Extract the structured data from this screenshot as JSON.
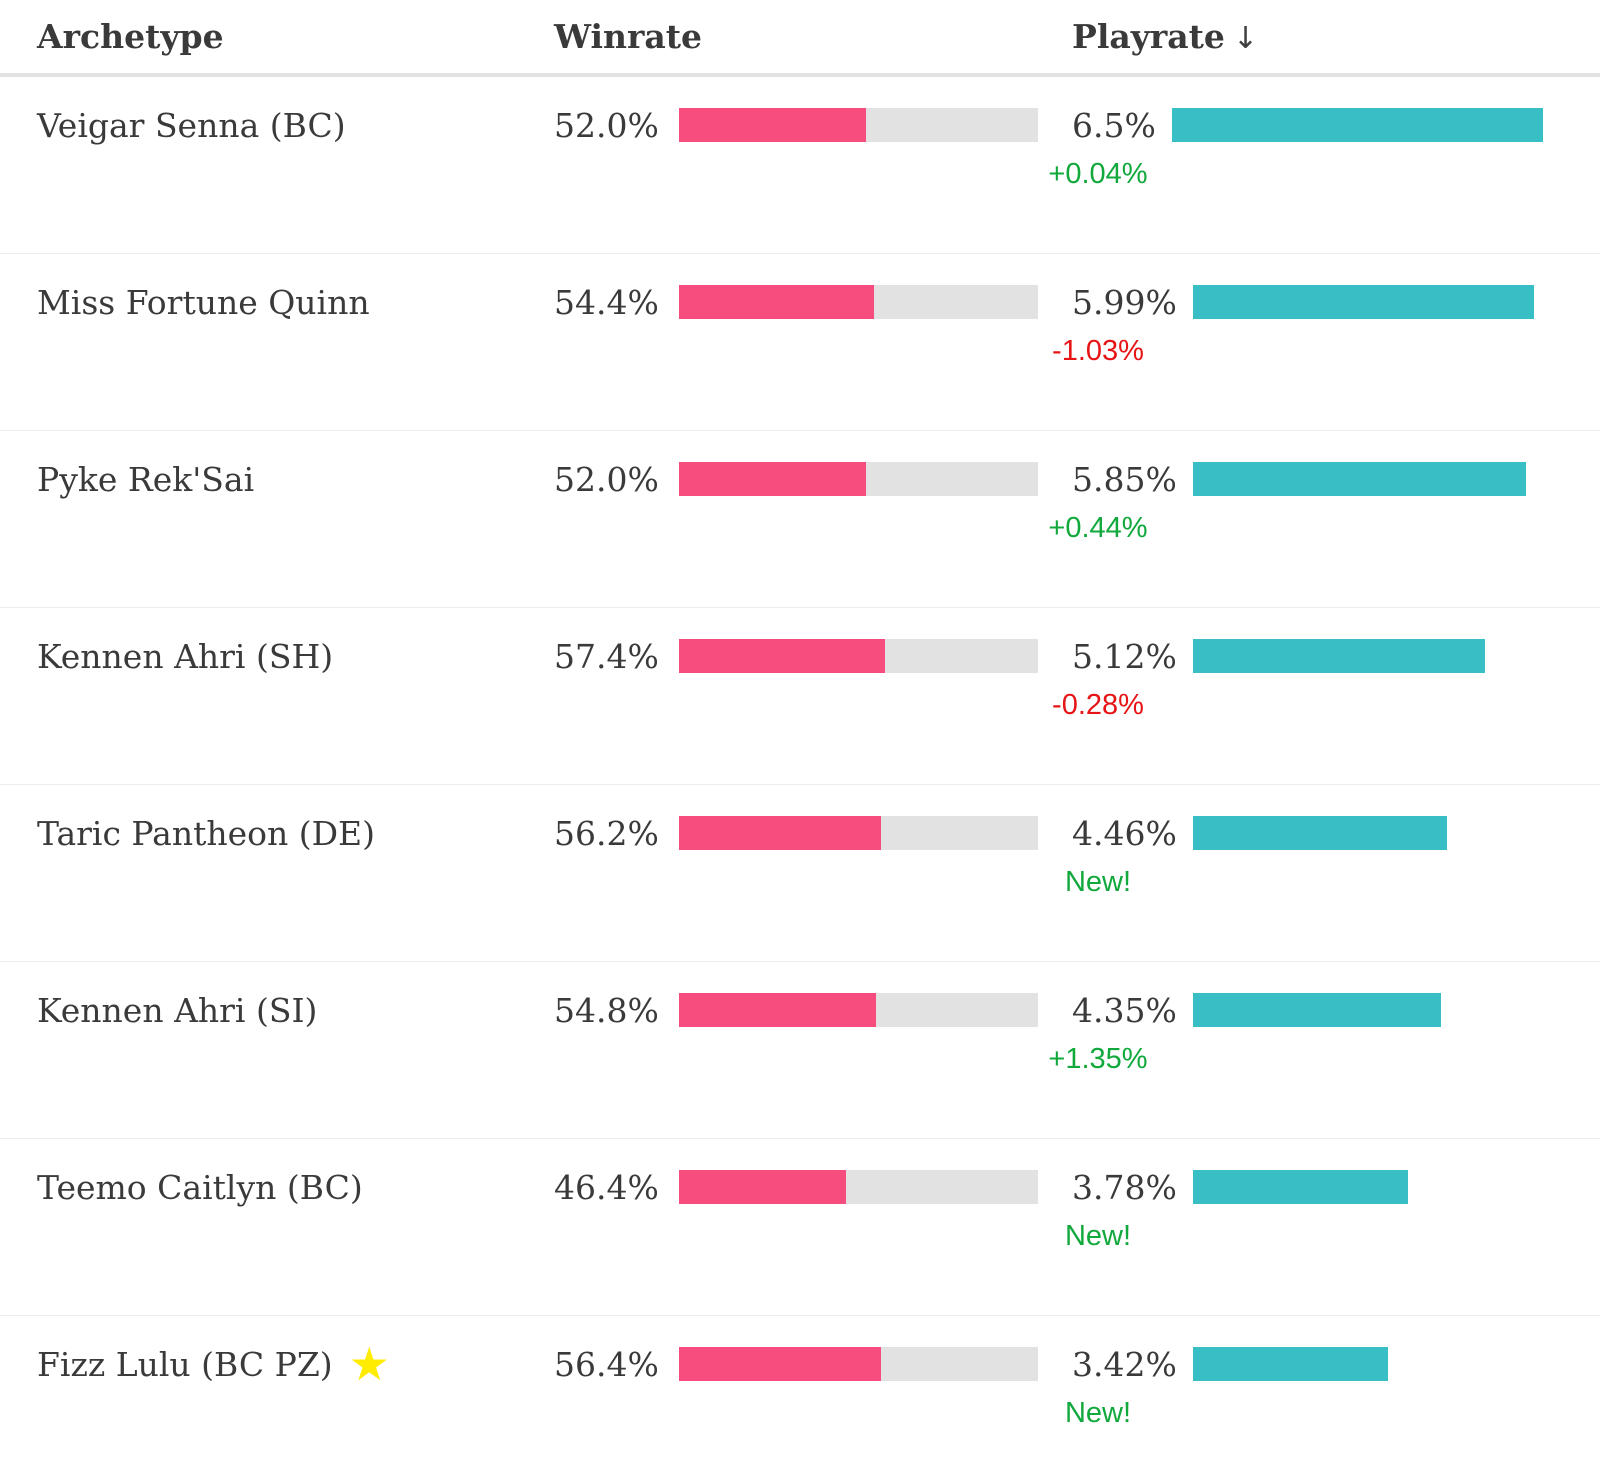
{
  "header": {
    "archetype_label": "Archetype",
    "winrate_label": "Winrate",
    "playrate_label": "Playrate",
    "sort_arrow": "↓"
  },
  "icons": {
    "favorite_star": "★"
  },
  "colors": {
    "text": "#3a3a3a",
    "winrate-bar": "#f64d7e",
    "winrate-track": "#e2e2e2",
    "playrate-bar": "#38bec5",
    "positive": "#11a83c",
    "negative": "#e61414",
    "star": "#ffec00",
    "divider": "#ececec",
    "header-divider": "#e2e2e2"
  },
  "chart_data": {
    "type": "table",
    "columns": [
      "Archetype",
      "Winrate",
      "Playrate"
    ],
    "sorted_by": "Playrate",
    "sort_direction": "descending",
    "winrate_bar_range": [
      0,
      100
    ],
    "playrate_bar_max": 6.5,
    "rows": [
      {
        "archetype": "Veigar Senna (BC)",
        "starred": false,
        "winrate_pct": 52.0,
        "winrate_label": "52.0%",
        "playrate_pct": 6.5,
        "playrate_label": "6.5%",
        "change_label": "+0.04%",
        "change_type": "up"
      },
      {
        "archetype": "Miss Fortune Quinn",
        "starred": false,
        "winrate_pct": 54.4,
        "winrate_label": "54.4%",
        "playrate_pct": 5.99,
        "playrate_label": "5.99%",
        "change_label": "-1.03%",
        "change_type": "down"
      },
      {
        "archetype": "Pyke Rek'Sai",
        "starred": false,
        "winrate_pct": 52.0,
        "winrate_label": "52.0%",
        "playrate_pct": 5.85,
        "playrate_label": "5.85%",
        "change_label": "+0.44%",
        "change_type": "up"
      },
      {
        "archetype": "Kennen Ahri (SH)",
        "starred": false,
        "winrate_pct": 57.4,
        "winrate_label": "57.4%",
        "playrate_pct": 5.12,
        "playrate_label": "5.12%",
        "change_label": "-0.28%",
        "change_type": "down"
      },
      {
        "archetype": "Taric Pantheon (DE)",
        "starred": false,
        "winrate_pct": 56.2,
        "winrate_label": "56.2%",
        "playrate_pct": 4.46,
        "playrate_label": "4.46%",
        "change_label": "New!",
        "change_type": "new"
      },
      {
        "archetype": "Kennen Ahri (SI)",
        "starred": false,
        "winrate_pct": 54.8,
        "winrate_label": "54.8%",
        "playrate_pct": 4.35,
        "playrate_label": "4.35%",
        "change_label": "+1.35%",
        "change_type": "up"
      },
      {
        "archetype": "Teemo Caitlyn (BC)",
        "starred": false,
        "winrate_pct": 46.4,
        "winrate_label": "46.4%",
        "playrate_pct": 3.78,
        "playrate_label": "3.78%",
        "change_label": "New!",
        "change_type": "new"
      },
      {
        "archetype": "Fizz Lulu (BC PZ)",
        "starred": true,
        "winrate_pct": 56.4,
        "winrate_label": "56.4%",
        "playrate_pct": 3.42,
        "playrate_label": "3.42%",
        "change_label": "New!",
        "change_type": "new"
      }
    ]
  }
}
